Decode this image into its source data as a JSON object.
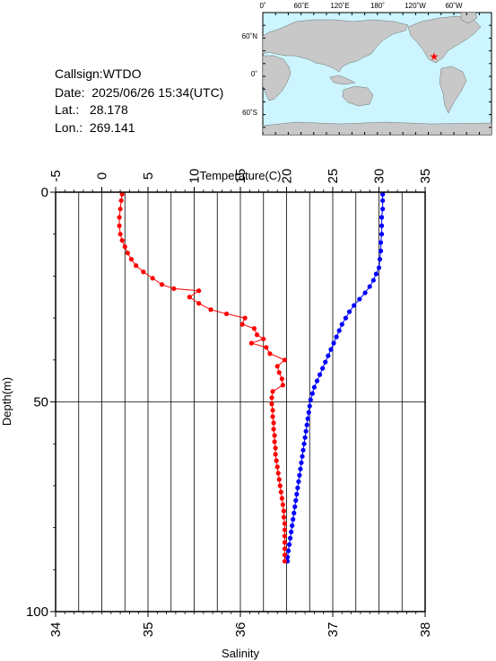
{
  "station": {
    "callsign_label": "Callsign:",
    "callsign": "WTDO",
    "date_label": "Date:",
    "date": "2025/06/26 15:34(UTC)",
    "lat_label": "Lat.:",
    "lat": "28.178",
    "lon_label": "Lon.:",
    "lon": "269.141"
  },
  "map": {
    "top_labels": [
      "0˚",
      "60˚E",
      "120˚E",
      "180˚",
      "120˚W",
      "60˚W"
    ],
    "left_labels": [
      "60˚N",
      "0˚",
      "60˚S"
    ],
    "ocean_color": "#ccf5ff",
    "land_color": "#c8c8c8",
    "marker_color": "#ff0000"
  },
  "chart_data": {
    "type": "line",
    "yaxis": {
      "label": "Depth(m)",
      "range": [
        0,
        100
      ],
      "ticks": [
        0,
        50,
        100
      ],
      "inverted": true
    },
    "top_axis": {
      "label": "Temperature(C)",
      "range": [
        -5,
        35
      ],
      "ticks": [
        -5,
        0,
        5,
        10,
        15,
        20,
        25,
        30,
        35
      ]
    },
    "bottom_axis": {
      "label": "Salinity",
      "range": [
        34,
        38
      ],
      "ticks": [
        34,
        35,
        36,
        37,
        38
      ]
    },
    "grid": true,
    "series": [
      {
        "axis": "top",
        "color": "#0000ff",
        "points": [
          [
            30.4,
            0.5
          ],
          [
            30.4,
            2
          ],
          [
            30.4,
            4
          ],
          [
            30.3,
            6
          ],
          [
            30.3,
            8
          ],
          [
            30.3,
            10
          ],
          [
            30.2,
            12
          ],
          [
            30.2,
            14
          ],
          [
            30.1,
            16
          ],
          [
            30.0,
            18
          ],
          [
            29.7,
            19.5
          ],
          [
            29.4,
            21
          ],
          [
            29.0,
            22.5
          ],
          [
            28.5,
            24
          ],
          [
            27.9,
            25.5
          ],
          [
            27.3,
            27
          ],
          [
            26.8,
            28.5
          ],
          [
            26.4,
            30
          ],
          [
            26.0,
            31.5
          ],
          [
            25.7,
            33
          ],
          [
            25.4,
            34.5
          ],
          [
            25.1,
            36
          ],
          [
            24.8,
            37.5
          ],
          [
            24.5,
            39
          ],
          [
            24.2,
            40.5
          ],
          [
            23.9,
            42
          ],
          [
            23.6,
            43.5
          ],
          [
            23.3,
            45
          ],
          [
            23.0,
            46.5
          ],
          [
            22.8,
            48
          ],
          [
            22.6,
            49.5
          ],
          [
            22.5,
            51
          ],
          [
            22.4,
            52.5
          ],
          [
            22.3,
            54
          ],
          [
            22.2,
            55.5
          ],
          [
            22.1,
            57
          ],
          [
            22.0,
            58.5
          ],
          [
            21.9,
            60
          ],
          [
            21.8,
            61.5
          ],
          [
            21.7,
            63
          ],
          [
            21.6,
            64.5
          ],
          [
            21.5,
            66
          ],
          [
            21.4,
            67.5
          ],
          [
            21.3,
            69
          ],
          [
            21.2,
            70.5
          ],
          [
            21.1,
            72
          ],
          [
            21.0,
            73.5
          ],
          [
            20.9,
            75
          ],
          [
            20.8,
            76.5
          ],
          [
            20.7,
            78
          ],
          [
            20.6,
            79.5
          ],
          [
            20.5,
            81
          ],
          [
            20.4,
            82.5
          ],
          [
            20.3,
            84
          ],
          [
            20.2,
            85.5
          ],
          [
            20.1,
            87
          ],
          [
            20.1,
            88
          ]
        ]
      },
      {
        "axis": "bottom",
        "color": "#ff0000",
        "points": [
          [
            34.72,
            0.5
          ],
          [
            34.71,
            2
          ],
          [
            34.7,
            4
          ],
          [
            34.69,
            6
          ],
          [
            34.69,
            8
          ],
          [
            34.7,
            10
          ],
          [
            34.72,
            11.5
          ],
          [
            34.75,
            13
          ],
          [
            34.78,
            14.5
          ],
          [
            34.82,
            16
          ],
          [
            34.87,
            17.5
          ],
          [
            34.95,
            19
          ],
          [
            35.05,
            20.5
          ],
          [
            35.15,
            22
          ],
          [
            35.28,
            23
          ],
          [
            35.55,
            23.5
          ],
          [
            35.45,
            25
          ],
          [
            35.55,
            26.5
          ],
          [
            35.68,
            28
          ],
          [
            35.85,
            29
          ],
          [
            36.05,
            30
          ],
          [
            36.02,
            31.5
          ],
          [
            36.15,
            32.5
          ],
          [
            36.18,
            34
          ],
          [
            36.25,
            35
          ],
          [
            36.12,
            36
          ],
          [
            36.28,
            37
          ],
          [
            36.32,
            38.5
          ],
          [
            36.48,
            40
          ],
          [
            36.4,
            41.5
          ],
          [
            36.42,
            43
          ],
          [
            36.45,
            44.5
          ],
          [
            36.46,
            46
          ],
          [
            36.35,
            47.5
          ],
          [
            36.34,
            49
          ],
          [
            36.34,
            50.5
          ],
          [
            36.35,
            52
          ],
          [
            36.35,
            53.5
          ],
          [
            36.36,
            55
          ],
          [
            36.36,
            56.5
          ],
          [
            36.37,
            58
          ],
          [
            36.37,
            59.5
          ],
          [
            36.38,
            61
          ],
          [
            36.38,
            62.5
          ],
          [
            36.39,
            64
          ],
          [
            36.4,
            65.5
          ],
          [
            36.41,
            67
          ],
          [
            36.42,
            68.5
          ],
          [
            36.43,
            70
          ],
          [
            36.44,
            71.5
          ],
          [
            36.45,
            73
          ],
          [
            36.46,
            74.5
          ],
          [
            36.47,
            76
          ],
          [
            36.47,
            77.5
          ],
          [
            36.48,
            79
          ],
          [
            36.48,
            80.5
          ],
          [
            36.48,
            82
          ],
          [
            36.48,
            83.5
          ],
          [
            36.48,
            85
          ],
          [
            36.48,
            86.5
          ],
          [
            36.48,
            88
          ]
        ]
      }
    ]
  }
}
